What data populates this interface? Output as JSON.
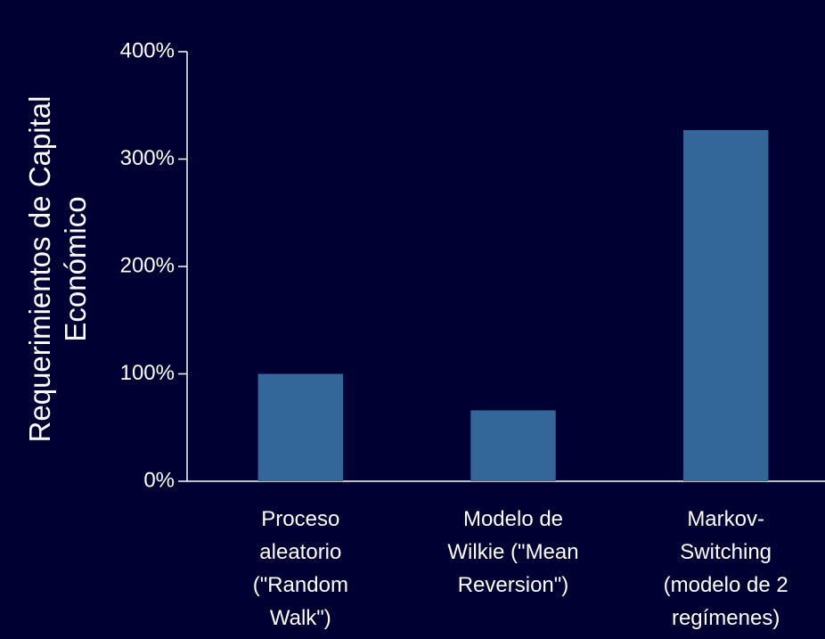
{
  "chart_data": {
    "type": "bar",
    "ylabel": "Requerimientos de Capital\nEconómico",
    "categories": [
      "Proceso\naleatorio\n(\"Random\nWalk\")",
      "Modelo de\nWilkie (\"Mean\nReversion\")",
      "Markov-\nSwitching\n(modelo de 2\nregímenes)"
    ],
    "values": [
      100,
      66,
      327
    ],
    "color": "#336699",
    "ylim": [
      0,
      400
    ],
    "yticks": [
      {
        "value": 0,
        "label": "0%"
      },
      {
        "value": 100,
        "label": "100%"
      },
      {
        "value": 200,
        "label": "200%"
      },
      {
        "value": 300,
        "label": "300%"
      },
      {
        "value": 400,
        "label": "400%"
      }
    ]
  }
}
